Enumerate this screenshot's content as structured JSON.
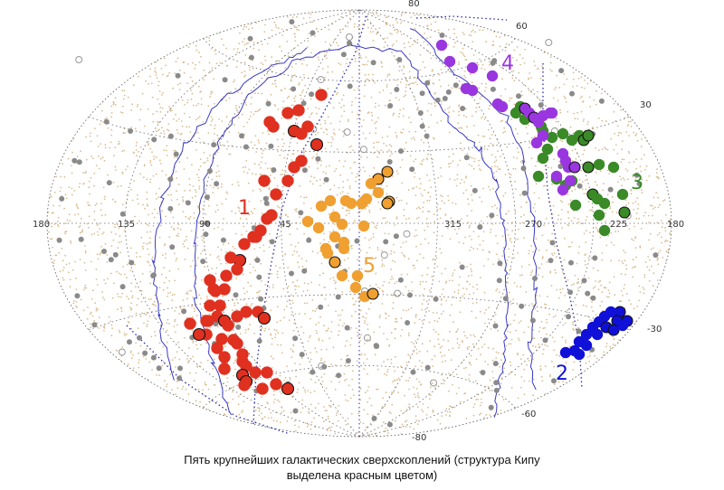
{
  "caption": {
    "line1": "Пять крупнейших галактических сверхскоплений (структура Кипу",
    "line2": "выделена красным цветом)"
  },
  "map": {
    "projection": "aitoff",
    "longitude_labels": [
      "180",
      "135",
      "90",
      "45",
      "315",
      "270",
      "225",
      "180"
    ],
    "latitude_labels": [
      "80",
      "60",
      "30",
      "-30",
      "-60",
      "-80"
    ],
    "background_galaxies_color": "#d9bd91",
    "grey_cluster_color": "#8a8a8a",
    "grid_color": "#2a2ab0",
    "galactic_plane_color": "#3a3ac8"
  },
  "superclusters": [
    {
      "label": "1",
      "color": "#e03020"
    },
    {
      "label": "2",
      "color": "#1010d8"
    },
    {
      "label": "3",
      "color": "#3a8a28"
    },
    {
      "label": "4",
      "color": "#9a36e0"
    },
    {
      "label": "5",
      "color": "#f0a030"
    }
  ]
}
